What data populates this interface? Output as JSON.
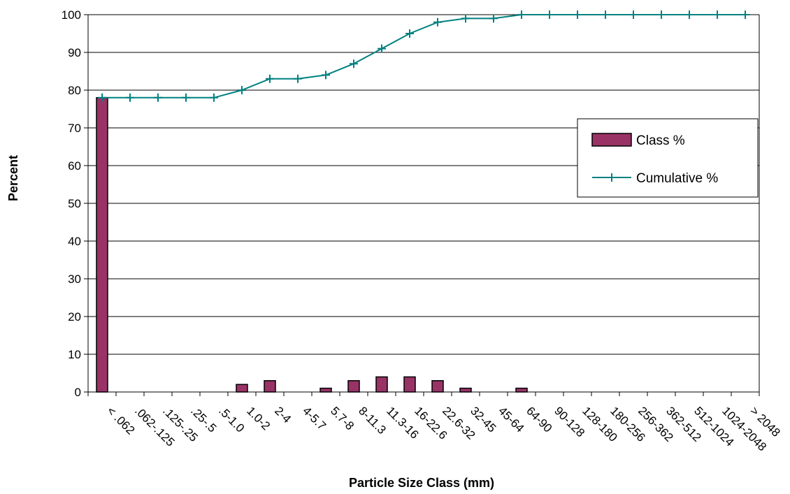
{
  "chart_data": {
    "type": "bar",
    "xlabel": "Particle Size Class (mm)",
    "ylabel": "Percent",
    "ylim": [
      0,
      100
    ],
    "yticks": [
      "0",
      "10",
      "20",
      "30",
      "40",
      "50",
      "60",
      "70",
      "80",
      "90",
      "100"
    ],
    "grid": true,
    "legend_position": "right",
    "categories": [
      "< .062",
      ".062-.125",
      ".125-.25",
      ".25-.5",
      ".5-1.0",
      "1.0-2",
      "2-4",
      "4-5.7",
      "5.7-8",
      "8-11.3",
      "11.3-16",
      "16-22.6",
      "22.6-32",
      "32-45",
      "45-64",
      "64-90",
      "90-128",
      "128-180",
      "180-256",
      "256-362",
      "362-512",
      "512-1024",
      "1024-2048",
      "> 2048"
    ],
    "series": [
      {
        "name": "Class %",
        "type": "bar",
        "color": "#993366",
        "values": [
          78,
          0,
          0,
          0,
          0,
          2,
          3,
          0,
          1,
          3,
          4,
          4,
          3,
          1,
          0,
          1,
          0,
          0,
          0,
          0,
          0,
          0,
          0,
          0
        ]
      },
      {
        "name": "Cumulative %",
        "type": "line",
        "color": "#008080",
        "marker": "plus",
        "values": [
          78,
          78,
          78,
          78,
          78,
          80,
          83,
          83,
          84,
          87,
          91,
          95,
          98,
          99,
          99,
          100,
          100,
          100,
          100,
          100,
          100,
          100,
          100,
          100
        ]
      }
    ]
  }
}
